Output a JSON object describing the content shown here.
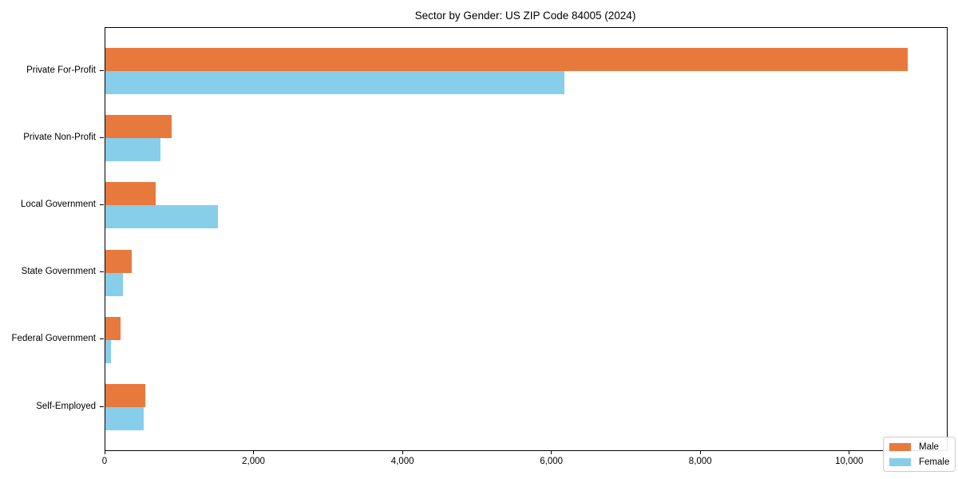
{
  "title": "Sector by Gender: US ZIP Code 84005 (2024)",
  "chart_data": {
    "type": "bar",
    "orientation": "horizontal",
    "title": "Sector by Gender: US ZIP Code 84005 (2024)",
    "xlabel": "",
    "ylabel": "",
    "categories": [
      "Private For-Profit",
      "Private Non-Profit",
      "Local Government",
      "State Government",
      "Federal Government",
      "Self-Employed"
    ],
    "series": [
      {
        "name": "Male",
        "color": "#e8793d",
        "values": [
          10770,
          890,
          680,
          350,
          200,
          540
        ]
      },
      {
        "name": "Female",
        "color": "#87ceeb",
        "values": [
          6160,
          740,
          1510,
          230,
          70,
          515
        ]
      }
    ],
    "xlim": [
      0,
      11300
    ],
    "x_ticks": [
      0,
      2000,
      4000,
      6000,
      8000,
      10000
    ],
    "x_tick_labels": [
      "0",
      "2,000",
      "4,000",
      "6,000",
      "8,000",
      "10,000"
    ],
    "grid": false,
    "legend_position": "lower right",
    "colors": {
      "male": "#e8793d",
      "female": "#87ceeb",
      "axis": "#000000",
      "background": "#ffffff"
    }
  }
}
